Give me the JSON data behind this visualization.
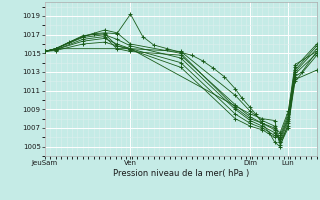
{
  "xlabel": "Pression niveau de la mer( hPa )",
  "ylim": [
    1004.0,
    1020.5
  ],
  "yticks": [
    1005,
    1007,
    1009,
    1011,
    1013,
    1015,
    1017,
    1019
  ],
  "bg_color": "#c5ebe6",
  "grid_color_major": "#ffffff",
  "grid_color_minor": "#ddf0ee",
  "line_color": "#1a5c1a",
  "xtick_labels": [
    "JeuSam",
    "Ven",
    "Dim",
    "Lun"
  ],
  "xtick_positions": [
    0.0,
    0.315,
    0.755,
    0.895
  ],
  "series": [
    [
      0.0,
      1015.2,
      0.04,
      1015.5,
      0.09,
      1016.2,
      0.14,
      1016.8,
      0.18,
      1017.1,
      0.22,
      1017.2,
      0.265,
      1017.1,
      0.315,
      1019.2,
      0.36,
      1016.8,
      0.4,
      1015.9,
      0.45,
      1015.5,
      0.5,
      1015.1,
      0.54,
      1014.8,
      0.58,
      1014.2,
      0.62,
      1013.4,
      0.66,
      1012.5,
      0.7,
      1011.2,
      0.725,
      1010.2,
      0.755,
      1009.2,
      0.775,
      1008.5,
      0.8,
      1007.5,
      0.825,
      1006.5,
      0.845,
      1005.5,
      0.865,
      1005.0,
      0.895,
      1007.5,
      0.92,
      1012.5,
      0.945,
      1013.0,
      1.0,
      1015.2
    ],
    [
      0.0,
      1015.2,
      0.04,
      1015.5,
      0.14,
      1016.9,
      0.22,
      1017.1,
      0.265,
      1015.8,
      0.315,
      1015.5,
      0.5,
      1015.2,
      0.7,
      1010.5,
      0.755,
      1008.8,
      0.8,
      1007.8,
      0.845,
      1007.2,
      0.865,
      1005.2,
      0.895,
      1007.0,
      0.92,
      1012.8,
      1.0,
      1015.0
    ],
    [
      0.0,
      1015.2,
      0.04,
      1015.4,
      0.14,
      1016.5,
      0.22,
      1016.8,
      0.265,
      1015.5,
      0.315,
      1015.2,
      0.5,
      1014.8,
      0.7,
      1009.5,
      0.755,
      1008.2,
      0.8,
      1007.5,
      0.845,
      1006.8,
      0.865,
      1005.5,
      0.895,
      1007.2,
      0.92,
      1012.0,
      1.0,
      1014.8
    ],
    [
      0.0,
      1015.2,
      0.04,
      1015.5,
      0.14,
      1016.7,
      0.22,
      1017.0,
      0.265,
      1016.5,
      0.315,
      1015.8,
      0.5,
      1014.5,
      0.7,
      1009.0,
      0.755,
      1007.8,
      0.8,
      1007.2,
      0.845,
      1006.5,
      0.865,
      1005.8,
      0.895,
      1008.0,
      0.92,
      1013.0,
      1.0,
      1015.5
    ],
    [
      0.0,
      1015.2,
      0.04,
      1015.4,
      0.14,
      1016.3,
      0.22,
      1016.6,
      0.265,
      1016.0,
      0.315,
      1015.5,
      0.5,
      1014.0,
      0.7,
      1008.5,
      0.755,
      1007.5,
      0.8,
      1007.0,
      0.845,
      1006.2,
      0.865,
      1006.0,
      0.895,
      1008.2,
      0.92,
      1013.2,
      1.0,
      1015.8
    ],
    [
      0.0,
      1015.2,
      0.04,
      1015.3,
      0.14,
      1016.0,
      0.22,
      1016.2,
      0.265,
      1015.8,
      0.315,
      1015.4,
      0.5,
      1013.5,
      0.7,
      1008.0,
      0.755,
      1007.2,
      0.8,
      1006.8,
      0.845,
      1006.0,
      0.865,
      1006.2,
      0.895,
      1008.5,
      0.92,
      1013.5,
      1.0,
      1016.0
    ],
    [
      0.0,
      1015.2,
      0.04,
      1015.5,
      0.14,
      1016.8,
      0.22,
      1017.5,
      0.265,
      1017.2,
      0.315,
      1016.0,
      0.5,
      1015.0,
      0.7,
      1009.2,
      0.755,
      1008.0,
      0.8,
      1007.5,
      0.845,
      1007.0,
      0.865,
      1006.5,
      0.895,
      1008.8,
      0.92,
      1013.8,
      1.0,
      1015.2
    ],
    [
      0.0,
      1015.2,
      0.04,
      1015.5,
      0.315,
      1015.5,
      0.755,
      1008.5,
      0.8,
      1008.0,
      0.845,
      1007.8,
      0.865,
      1005.5,
      0.895,
      1007.8,
      0.92,
      1012.2,
      1.0,
      1013.2
    ]
  ]
}
